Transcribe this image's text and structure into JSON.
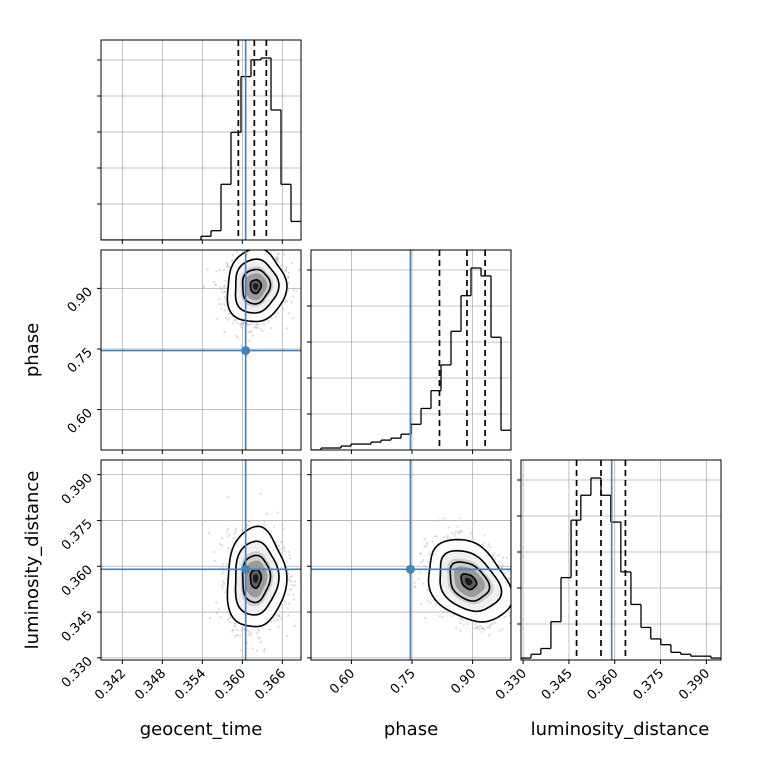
{
  "chart_data": {
    "type": "corner",
    "parameters": [
      "geocent_time",
      "phase",
      "luminosity_distance"
    ],
    "truths": {
      "geocent_time": 0.3605,
      "phase": 0.746,
      "luminosity_distance": 0.359
    },
    "colors": {
      "truth": "#4682b4",
      "contour": "#000000",
      "samples": "#bbbbbb",
      "frame": "#000000",
      "grid": "#b0b0b0"
    },
    "grid": true,
    "quantile_lines": {
      "geocent_time": [
        0.3594,
        0.3618,
        0.3636
      ],
      "phase": [
        0.818,
        0.886,
        0.931
      ],
      "luminosity_distance": [
        0.3475,
        0.3555,
        0.3635
      ]
    },
    "axes": {
      "geocent_time": {
        "range": [
          0.3388,
          0.3688
        ],
        "ticks": [
          0.342,
          0.348,
          0.354,
          0.36,
          0.366
        ],
        "tick_labels": [
          "0.342",
          "0.348",
          "0.354",
          "0.360",
          "0.366"
        ]
      },
      "phase": {
        "range": [
          0.5,
          0.995
        ],
        "ticks": [
          0.6,
          0.75,
          0.9
        ],
        "tick_labels": [
          "0.60",
          "0.75",
          "0.90"
        ]
      },
      "luminosity_distance": {
        "range": [
          0.3293,
          0.3948
        ],
        "ticks": [
          0.33,
          0.345,
          0.36,
          0.375,
          0.39
        ],
        "tick_labels": [
          "0.330",
          "0.345",
          "0.360",
          "0.375",
          "0.390"
        ]
      }
    },
    "histograms": {
      "geocent_time": {
        "bin_edges": [
          0.3388,
          0.3403,
          0.3418,
          0.3433,
          0.3448,
          0.3463,
          0.3478,
          0.3493,
          0.3508,
          0.3523,
          0.3538,
          0.3553,
          0.3568,
          0.3583,
          0.3598,
          0.3613,
          0.3628,
          0.3643,
          0.3658,
          0.3673,
          0.3688
        ],
        "counts": [
          0,
          0,
          0,
          0,
          0,
          0,
          0,
          0,
          0,
          0,
          2,
          5,
          30,
          58,
          88,
          97,
          98,
          70,
          30,
          10
        ]
      },
      "phase": {
        "bin_edges": [
          0.5,
          0.5248,
          0.5495,
          0.5743,
          0.599,
          0.6238,
          0.6485,
          0.6733,
          0.698,
          0.7228,
          0.7475,
          0.7723,
          0.797,
          0.8218,
          0.8465,
          0.8713,
          0.896,
          0.9208,
          0.9455,
          0.9703,
          0.995
        ],
        "counts": [
          0,
          1,
          1,
          2,
          3,
          3,
          4,
          5,
          6,
          8,
          13,
          21,
          30,
          43,
          60,
          78,
          92,
          88,
          57,
          10
        ]
      },
      "luminosity_distance": {
        "bin_edges": [
          0.3293,
          0.3326,
          0.3358,
          0.3391,
          0.3424,
          0.3457,
          0.3489,
          0.3522,
          0.3555,
          0.3587,
          0.362,
          0.3653,
          0.3686,
          0.3718,
          0.3751,
          0.3784,
          0.3816,
          0.3849,
          0.3882,
          0.3915,
          0.3948
        ],
        "counts": [
          1,
          3,
          6,
          20,
          43,
          73,
          86,
          95,
          86,
          72,
          46,
          29,
          17,
          11,
          8,
          4,
          3,
          2,
          2,
          1
        ]
      }
    },
    "contours": [
      {
        "x": "geocent_time",
        "y": "phase",
        "center": [
          0.362,
          0.905
        ],
        "sigma": [
          0.0018,
          0.037
        ],
        "rho": 0.05,
        "mode": [
          0.3627,
          0.905
        ]
      },
      {
        "x": "geocent_time",
        "y": "luminosity_distance",
        "center": [
          0.362,
          0.356
        ],
        "sigma": [
          0.0018,
          0.0067
        ],
        "rho": 0.05,
        "mode": [
          0.3625,
          0.357
        ]
      },
      {
        "x": "phase",
        "y": "luminosity_distance",
        "center": [
          0.89,
          0.355
        ],
        "sigma": [
          0.042,
          0.0055
        ],
        "rho": -0.3,
        "mode": [
          0.9,
          0.354
        ]
      }
    ]
  }
}
